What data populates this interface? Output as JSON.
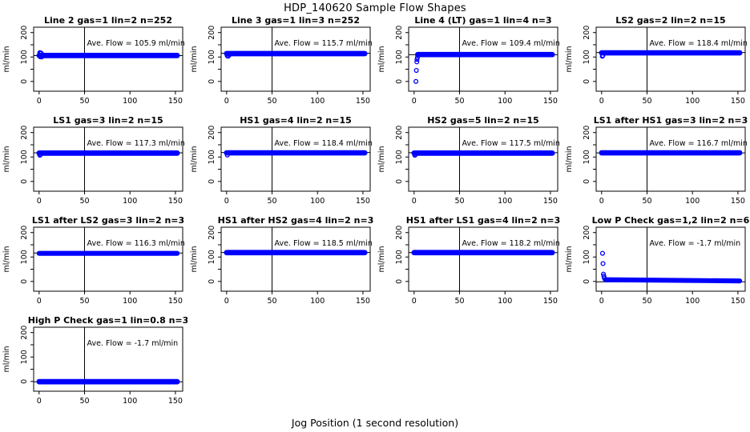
{
  "title": "HDP_140620  Sample Flow Shapes",
  "xlabel": "Jog Position (1 second resolution)",
  "chart_data": {
    "type": "scatter",
    "title": "HDP_140620  Sample Flow Shapes",
    "xlabel": "Jog Position (1 second resolution)",
    "ylabel": "ml/min",
    "xlim": [
      -6,
      158
    ],
    "ylim": [
      -40,
      222
    ],
    "xticks": [
      0,
      50,
      100,
      150
    ],
    "yticks_labeled": [
      0,
      100,
      200
    ],
    "yticks_all": [
      0,
      50,
      100,
      150,
      200
    ],
    "vline_x": 50,
    "grid": false,
    "point_color": "#0000FF",
    "axis_color": "#000000",
    "marker": "open-circle",
    "panels": [
      {
        "title": "Line 2 gas=1 lin=2 n=252",
        "ave_flow": 105.9,
        "ave_text": "Ave. Flow =  105.9  ml/min",
        "band": {
          "x": [
            0,
            152
          ],
          "y": [
            106,
            106
          ],
          "halfwidth": 11
        },
        "startup_points": [
          [
            0.8,
            118
          ],
          [
            1.6,
            117
          ],
          [
            2.4,
            115
          ],
          [
            1.2,
            101
          ],
          [
            2.8,
            100
          ]
        ]
      },
      {
        "title": "Line 3 gas=1 lin=3 n=252",
        "ave_flow": 115.7,
        "ave_text": "Ave. Flow =  115.7  ml/min",
        "band": {
          "x": [
            0,
            152
          ],
          "y": [
            114,
            114
          ],
          "halfwidth": 11
        },
        "startup_points": [
          [
            0.8,
            104
          ],
          [
            1.6,
            103
          ],
          [
            2.6,
            107
          ]
        ]
      },
      {
        "title": "Line 4 (LT) gas=1 lin=4 n=3",
        "ave_flow": 109.4,
        "ave_text": "Ave. Flow =  109.4  ml/min",
        "band": {
          "x": [
            4,
            152
          ],
          "y": [
            110,
            110
          ],
          "halfwidth": 11
        },
        "startup_points": [
          [
            2,
            0
          ],
          [
            2.5,
            45
          ],
          [
            3,
            80
          ],
          [
            3.2,
            90
          ],
          [
            3.6,
            98
          ]
        ]
      },
      {
        "title": "LS2 gas=2 lin=2 n=15",
        "ave_flow": 118.4,
        "ave_text": "Ave. Flow =  118.4  ml/min",
        "band": {
          "x": [
            0,
            152
          ],
          "y": [
            117,
            117
          ],
          "halfwidth": 11
        },
        "startup_points": [
          [
            0.8,
            103
          ],
          [
            1.4,
            106
          ]
        ]
      },
      {
        "title": "LS1 gas=3 lin=2 n=15",
        "ave_flow": 117.3,
        "ave_text": "Ave. Flow =  117.3  ml/min",
        "band": {
          "x": [
            0,
            152
          ],
          "y": [
            116,
            116
          ],
          "halfwidth": 11
        },
        "startup_points": [
          [
            0.8,
            107
          ],
          [
            1.6,
            110
          ]
        ]
      },
      {
        "title": "HS1 gas=4 lin=2 n=15",
        "ave_flow": 118.4,
        "ave_text": "Ave. Flow =  118.4  ml/min",
        "band": {
          "x": [
            0,
            152
          ],
          "y": [
            117,
            117
          ],
          "halfwidth": 11
        },
        "startup_points": [
          [
            0.8,
            108
          ]
        ]
      },
      {
        "title": "HS2 gas=5 lin=2 n=15",
        "ave_flow": 117.5,
        "ave_text": "Ave. Flow =  117.5  ml/min",
        "band": {
          "x": [
            0,
            152
          ],
          "y": [
            116,
            116
          ],
          "halfwidth": 11
        },
        "startup_points": [
          [
            0.8,
            107
          ],
          [
            1.6,
            110
          ]
        ]
      },
      {
        "title": "LS1 after HS1 gas=3 lin=2 n=3",
        "ave_flow": 116.7,
        "ave_text": "Ave. Flow =  116.7  ml/min",
        "band": {
          "x": [
            0,
            152
          ],
          "y": [
            117,
            117
          ],
          "halfwidth": 11
        },
        "startup_points": []
      },
      {
        "title": "LS1 after LS2 gas=3 lin=2 n=3",
        "ave_flow": 116.3,
        "ave_text": "Ave. Flow =  116.3  ml/min",
        "band": {
          "x": [
            0,
            152
          ],
          "y": [
            115,
            115
          ],
          "halfwidth": 10
        },
        "startup_points": []
      },
      {
        "title": "HS1 after HS2 gas=4 lin=2 n=3",
        "ave_flow": 118.5,
        "ave_text": "Ave. Flow =  118.5  ml/min",
        "band": {
          "x": [
            0,
            152
          ],
          "y": [
            118,
            118
          ],
          "halfwidth": 11
        },
        "startup_points": []
      },
      {
        "title": "HS1 after LS1 gas=4 lin=2 n=3",
        "ave_flow": 118.2,
        "ave_text": "Ave. Flow =  118.2  ml/min",
        "band": {
          "x": [
            0,
            152
          ],
          "y": [
            118,
            118
          ],
          "halfwidth": 11
        },
        "startup_points": []
      },
      {
        "title": "Low P Check gas=1,2 lin=2 n=6",
        "ave_flow": -1.7,
        "ave_text": "Ave. Flow =  -1.7  ml/min",
        "band": {
          "x": [
            4,
            152
          ],
          "y": [
            7,
            2
          ],
          "halfwidth": 10
        },
        "startup_points": [
          [
            1,
            115
          ],
          [
            1.5,
            73
          ],
          [
            2,
            30
          ],
          [
            2.5,
            22
          ],
          [
            3,
            14
          ]
        ]
      },
      {
        "title": "High P Check gas=1 lin=0.8 n=3",
        "ave_flow": -1.7,
        "ave_text": "Ave. Flow =  -1.7  ml/min",
        "band": {
          "x": [
            0,
            152
          ],
          "y": [
            -1,
            -1
          ],
          "halfwidth": 11
        },
        "startup_points": []
      }
    ]
  }
}
